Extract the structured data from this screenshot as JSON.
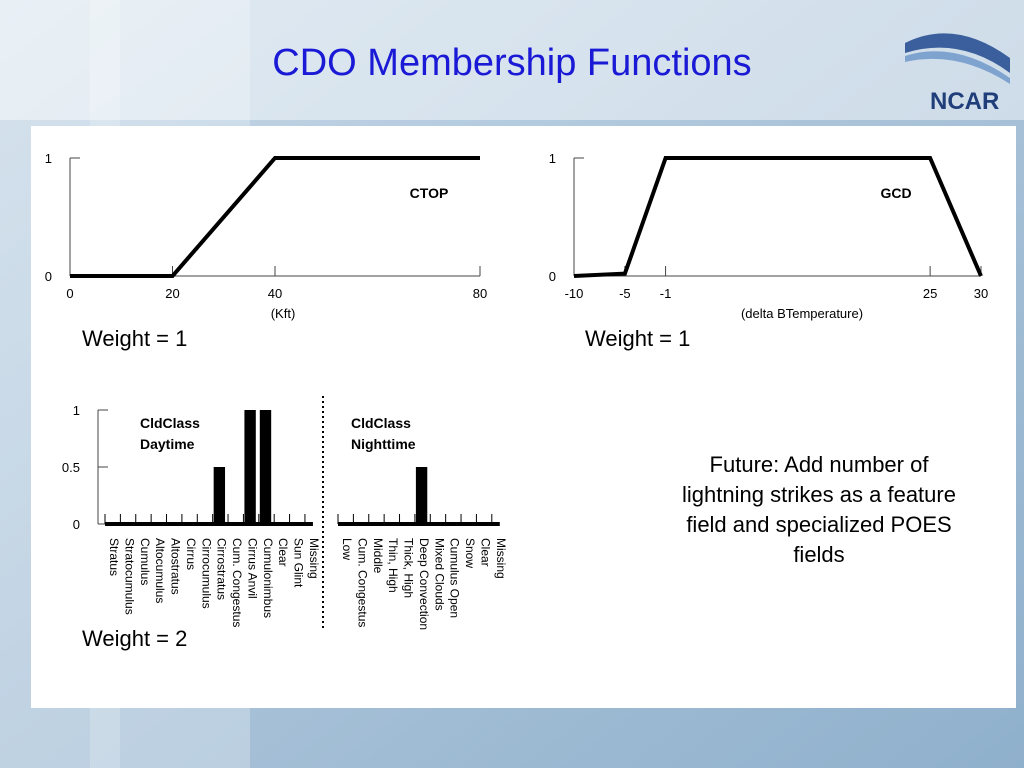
{
  "title": "CDO Membership Functions",
  "logo": "NCAR",
  "colors": {
    "title": "#1a1ad6",
    "logo": "#1f3e7a",
    "background": "#b7cde0",
    "panel": "#ffffff",
    "line": "#000000"
  },
  "weights": {
    "ctop": "Weight = 1",
    "gcd": "Weight = 1",
    "cldclass": "Weight = 2"
  },
  "future_note": "Future: Add number of lightning strikes as a feature field and specialized POES fields",
  "chart_data": [
    {
      "type": "line",
      "title": "CTOP",
      "xlabel": "(Kft)",
      "x": [
        0,
        20,
        40,
        80
      ],
      "y": [
        0,
        0,
        1,
        1
      ],
      "xticks": [
        0,
        20,
        40,
        80
      ],
      "yticks": [
        0,
        1
      ],
      "xlim": [
        0,
        80
      ],
      "ylim": [
        0,
        1
      ],
      "grid": false
    },
    {
      "type": "line",
      "title": "GCD",
      "xlabel": "(delta BTemperature)",
      "x": [
        -10,
        -5,
        -1,
        25,
        30
      ],
      "y": [
        0,
        0.02,
        1,
        1,
        0
      ],
      "xticks": [
        -10,
        -5,
        -1,
        25,
        30
      ],
      "yticks": [
        0,
        1
      ],
      "xlim": [
        -10,
        30
      ],
      "ylim": [
        0,
        1
      ],
      "grid": false
    },
    {
      "type": "bar",
      "title": "CldClass Daytime / CldClass Nighttime",
      "yticks": [
        0,
        0.5,
        1
      ],
      "ylim": [
        0,
        1
      ],
      "grid": false,
      "groups": [
        {
          "label": [
            "CldClass",
            "Daytime"
          ],
          "categories": [
            "Stratus",
            "Stratocumulus",
            "Cumulus",
            "Altocumulus",
            "Altostratus",
            "Cirrus",
            "Cirrocumulus",
            "Cirrostratus",
            "Cum. Congestus",
            "Cirrus Anvil",
            "Cumulonimbus",
            "Clear",
            "Sun Glint",
            "Missing"
          ],
          "values": [
            0,
            0,
            0,
            0,
            0,
            0,
            0,
            0.5,
            0,
            1,
            1,
            0,
            0,
            0
          ]
        },
        {
          "label": [
            "CldClass",
            "Nighttime"
          ],
          "categories": [
            "Low",
            "Cum. Congestus",
            "Middle",
            "Thin, High",
            "Thick, High",
            "Deep Convection",
            "Mixed Clouds",
            "Cumulus Open",
            "Snow",
            "Clear",
            "Missing"
          ],
          "values": [
            0,
            0,
            0,
            0,
            0,
            0.5,
            0,
            0,
            0,
            0,
            0
          ]
        }
      ]
    }
  ]
}
